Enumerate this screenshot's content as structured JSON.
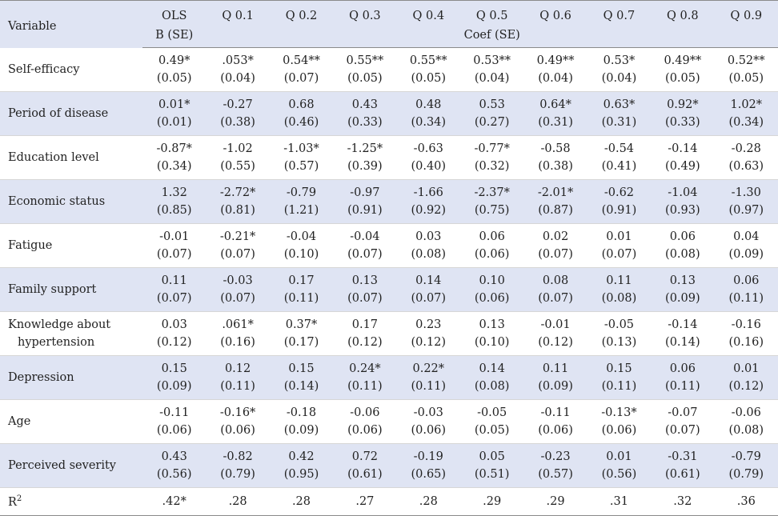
{
  "header": {
    "variable_label": "Variable",
    "col_labels": [
      "OLS",
      "Q 0.1",
      "Q 0.2",
      "Q 0.3",
      "Q 0.4",
      "Q 0.5",
      "Q 0.6",
      "Q 0.7",
      "Q 0.8",
      "Q 0.9"
    ],
    "ols_sub": "B (SE)",
    "coef_sub": "Coef (SE)"
  },
  "rows": [
    {
      "variable": "Self-efficacy",
      "variable_line2": "",
      "coef": [
        "0.49*",
        ".053*",
        "0.54**",
        "0.55**",
        "0.55**",
        "0.53**",
        "0.49**",
        "0.53*",
        "0.49**",
        "0.52**"
      ],
      "se": [
        "(0.05)",
        "(0.04)",
        "(0.07)",
        "(0.05)",
        "(0.05)",
        "(0.04)",
        "(0.04)",
        "(0.04)",
        "(0.05)",
        "(0.05)"
      ]
    },
    {
      "variable": "Period of disease",
      "variable_line2": "",
      "coef": [
        "0.01*",
        "-0.27",
        "0.68",
        "0.43",
        "0.48",
        "0.53",
        "0.64*",
        "0.63*",
        "0.92*",
        "1.02*"
      ],
      "se": [
        "(0.01)",
        "(0.38)",
        "(0.46)",
        "(0.33)",
        "(0.34)",
        "(0.27)",
        "(0.31)",
        "(0.31)",
        "(0.33)",
        "(0.34)"
      ]
    },
    {
      "variable": "Education level",
      "variable_line2": "",
      "coef": [
        "-0.87*",
        "-1.02",
        "-1.03*",
        "-1.25*",
        "-0.63",
        "-0.77*",
        "-0.58",
        "-0.54",
        "-0.14",
        "-0.28"
      ],
      "se": [
        "(0.34)",
        "(0.55)",
        "(0.57)",
        "(0.39)",
        "(0.40)",
        "(0.32)",
        "(0.38)",
        "(0.41)",
        "(0.49)",
        "(0.63)"
      ]
    },
    {
      "variable": "Economic status",
      "variable_line2": "",
      "coef": [
        "1.32",
        "-2.72*",
        "-0.79",
        "-0.97",
        "-1.66",
        "-2.37*",
        "-2.01*",
        "-0.62",
        "-1.04",
        "-1.30"
      ],
      "se": [
        "(0.85)",
        "(0.81)",
        "(1.21)",
        "(0.91)",
        "(0.92)",
        "(0.75)",
        "(0.87)",
        "(0.91)",
        "(0.93)",
        "(0.97)"
      ]
    },
    {
      "variable": "Fatigue",
      "variable_line2": "",
      "coef": [
        "-0.01",
        "-0.21*",
        "-0.04",
        "-0.04",
        "0.03",
        "0.06",
        "0.02",
        "0.01",
        "0.06",
        "0.04"
      ],
      "se": [
        "(0.07)",
        "(0.07)",
        "(0.10)",
        "(0.07)",
        "(0.08)",
        "(0.06)",
        "(0.07)",
        "(0.07)",
        "(0.08)",
        "(0.09)"
      ]
    },
    {
      "variable": "Family support",
      "variable_line2": "",
      "coef": [
        "0.11",
        "-0.03",
        "0.17",
        "0.13",
        "0.14",
        "0.10",
        "0.08",
        "0.11",
        "0.13",
        "0.06"
      ],
      "se": [
        "(0.07)",
        "(0.07)",
        "(0.11)",
        "(0.07)",
        "(0.07)",
        "(0.06)",
        "(0.07)",
        "(0.08)",
        "(0.09)",
        "(0.11)"
      ]
    },
    {
      "variable": "Knowledge about",
      "variable_line2": "hypertension",
      "coef": [
        "0.03",
        ".061*",
        "0.37*",
        "0.17",
        "0.23",
        "0.13",
        "-0.01",
        "-0.05",
        "-0.14",
        "-0.16"
      ],
      "se": [
        "(0.12)",
        "(0.16)",
        "(0.17)",
        "(0.12)",
        "(0.12)",
        "(0.10)",
        "(0.12)",
        "(0.13)",
        "(0.14)",
        "(0.16)"
      ]
    },
    {
      "variable": "Depression",
      "variable_line2": "",
      "coef": [
        "0.15",
        "0.12",
        "0.15",
        "0.24*",
        "0.22*",
        "0.14",
        "0.11",
        "0.15",
        "0.06",
        "0.01"
      ],
      "se": [
        "(0.09)",
        "(0.11)",
        "(0.14)",
        "(0.11)",
        "(0.11)",
        "(0.08)",
        "(0.09)",
        "(0.11)",
        "(0.11)",
        "(0.12)"
      ]
    },
    {
      "variable": "Age",
      "variable_line2": "",
      "coef": [
        "-0.11",
        "-0.16*",
        "-0.18",
        "-0.06",
        "-0.03",
        "-0.05",
        "-0.11",
        "-0.13*",
        "-0.07",
        "-0.06"
      ],
      "se": [
        "(0.06)",
        "(0.06)",
        "(0.09)",
        "(0.06)",
        "(0.06)",
        "(0.05)",
        "(0.06)",
        "(0.06)",
        "(0.07)",
        "(0.08)"
      ]
    },
    {
      "variable": "Perceived severity",
      "variable_line2": "",
      "coef": [
        "0.43",
        "-0.82",
        "0.42",
        "0.72",
        "-0.19",
        "0.05",
        "-0.23",
        "0.01",
        "-0.31",
        "-0.79"
      ],
      "se": [
        "(0.56)",
        "(0.79)",
        "(0.95)",
        "(0.61)",
        "(0.65)",
        "(0.51)",
        "(0.57)",
        "(0.56)",
        "(0.61)",
        "(0.79)"
      ]
    }
  ],
  "r_squared": {
    "label_base": "R",
    "label_sup": "2",
    "values": [
      ".42*",
      ".28",
      ".28",
      ".27",
      ".28",
      ".29",
      ".29",
      ".31",
      ".32",
      ".36"
    ]
  }
}
